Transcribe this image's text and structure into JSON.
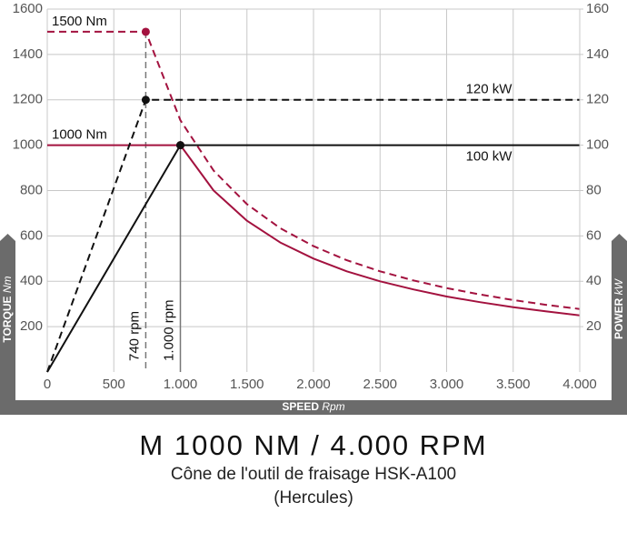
{
  "chart_data": {
    "type": "line",
    "title": "M 1000 NM / 4.000 RPM",
    "subtitle": "Cône de l'outil de fraisage HSK-A100",
    "caption": "(Hercules)",
    "x_label": "SPEED",
    "x_unit": "Rpm",
    "y_label": "TORQUE",
    "y_unit": "Nm",
    "y2_label": "POWER",
    "y2_unit": "kW",
    "xlim": [
      0,
      4000
    ],
    "xticks": [
      0,
      500,
      {
        "value": 1000,
        "label": "1.000"
      },
      {
        "value": 1500,
        "label": "1.500"
      },
      {
        "value": 2000,
        "label": "2.000"
      },
      {
        "value": 2500,
        "label": "2.500"
      },
      {
        "value": 3000,
        "label": "3.000"
      },
      {
        "value": 3500,
        "label": "3.500"
      },
      {
        "value": 4000,
        "label": "4.000"
      }
    ],
    "ylim": [
      0,
      1600
    ],
    "yticks": [
      200,
      400,
      600,
      800,
      1000,
      1200,
      1400,
      1600
    ],
    "y2lim": [
      0,
      160
    ],
    "y2ticks": [
      20,
      40,
      60,
      80,
      100,
      120,
      140,
      160
    ],
    "grid": true,
    "series": [
      {
        "name": "1500 Nm",
        "color": "#a3123f",
        "dashed": true,
        "x": [
          0,
          740,
          1000,
          1250,
          1500,
          1750,
          2000,
          2250,
          2500,
          2750,
          3000,
          3250,
          3500,
          3750,
          4000
        ],
        "values": [
          1500,
          1500,
          1110,
          888,
          740,
          634,
          555,
          493,
          444,
          404,
          370,
          342,
          317,
          296,
          278
        ]
      },
      {
        "name": "1000 Nm",
        "color": "#a3123f",
        "dashed": false,
        "x": [
          0,
          1000,
          1250,
          1500,
          1750,
          2000,
          2250,
          2500,
          2750,
          3000,
          3250,
          3500,
          3750,
          4000
        ],
        "values": [
          1000,
          1000,
          800,
          667,
          571,
          500,
          444,
          400,
          364,
          333,
          308,
          286,
          267,
          250
        ]
      },
      {
        "name": "120 kW",
        "color": "#111111",
        "dashed": true,
        "axis": "y2",
        "x": [
          0,
          740,
          4000
        ],
        "values": [
          0,
          120,
          120
        ]
      },
      {
        "name": "100 kW",
        "color": "#111111",
        "dashed": false,
        "axis": "y2",
        "x": [
          0,
          1000,
          4000
        ],
        "values": [
          0,
          100,
          100
        ]
      }
    ],
    "points": [
      {
        "x": 740,
        "y": 1500,
        "color": "#a3123f"
      },
      {
        "x": 740,
        "y": 120,
        "axis": "y2",
        "color": "#111111"
      },
      {
        "x": 1000,
        "y": 1000,
        "color": "#a3123f"
      },
      {
        "x": 1000,
        "y": 100,
        "axis": "y2",
        "color": "#111111"
      }
    ],
    "vlines": [
      {
        "x": 740,
        "top": 1500,
        "label": "740 rpm",
        "dashed": true
      },
      {
        "x": 1000,
        "top": 1000,
        "label": "1.000 rpm",
        "dashed": false
      }
    ]
  }
}
